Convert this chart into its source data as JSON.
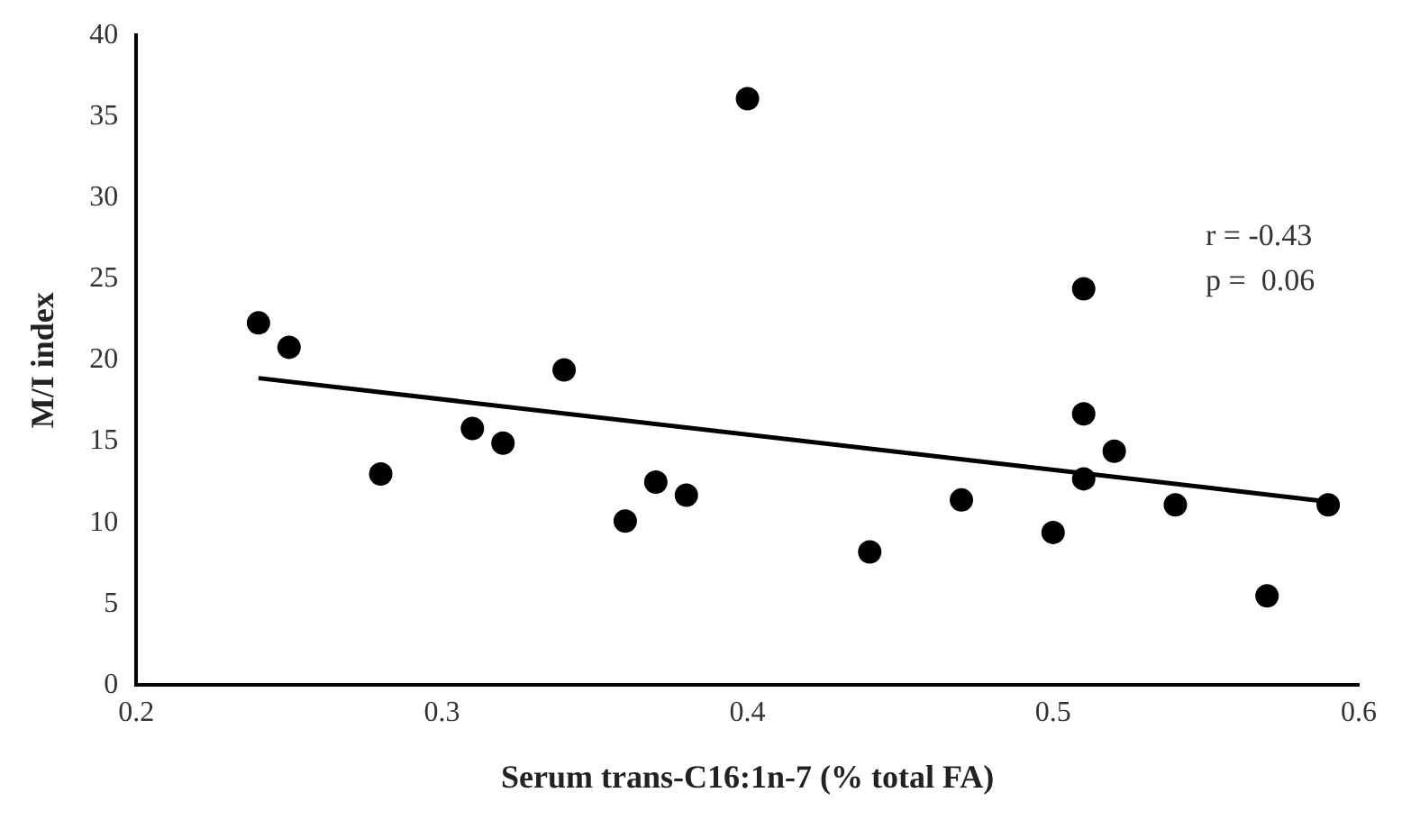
{
  "chart_data": {
    "type": "scatter",
    "xlabel": "Serum trans-C16:1n-7 (% total FA)",
    "ylabel": "M/I index",
    "series": [
      {
        "color": "#000000",
        "x": [
          0.24,
          0.25,
          0.28,
          0.31,
          0.32,
          0.34,
          0.36,
          0.37,
          0.38,
          0.4,
          0.44,
          0.47,
          0.5,
          0.51,
          0.51,
          0.51,
          0.52,
          0.54,
          0.57,
          0.59
        ],
        "values": [
          22.3,
          20.8,
          13,
          15.8,
          14.9,
          19.4,
          10.1,
          12.5,
          11.7,
          36.1,
          8.2,
          11.4,
          9.4,
          24.4,
          16.7,
          12.7,
          14.4,
          11.1,
          5.5,
          11.1
        ]
      },
      {
        "type": "line",
        "marker": "none",
        "color": "#000000",
        "x": [
          0.24,
          0.59
        ],
        "values": [
          18.9,
          11.3
        ]
      }
    ],
    "xlim": [
      0.2,
      0.6
    ],
    "xticks": [
      0.2,
      0.3,
      0.4,
      0.5,
      0.6
    ],
    "ylim": [
      0,
      40
    ],
    "yticks": [
      0,
      5,
      10,
      15,
      20,
      25,
      30,
      35,
      40
    ],
    "marker": "circle",
    "grid": false,
    "legend": false,
    "annotations": [
      "r = -0.43",
      "p =  0.06"
    ]
  }
}
